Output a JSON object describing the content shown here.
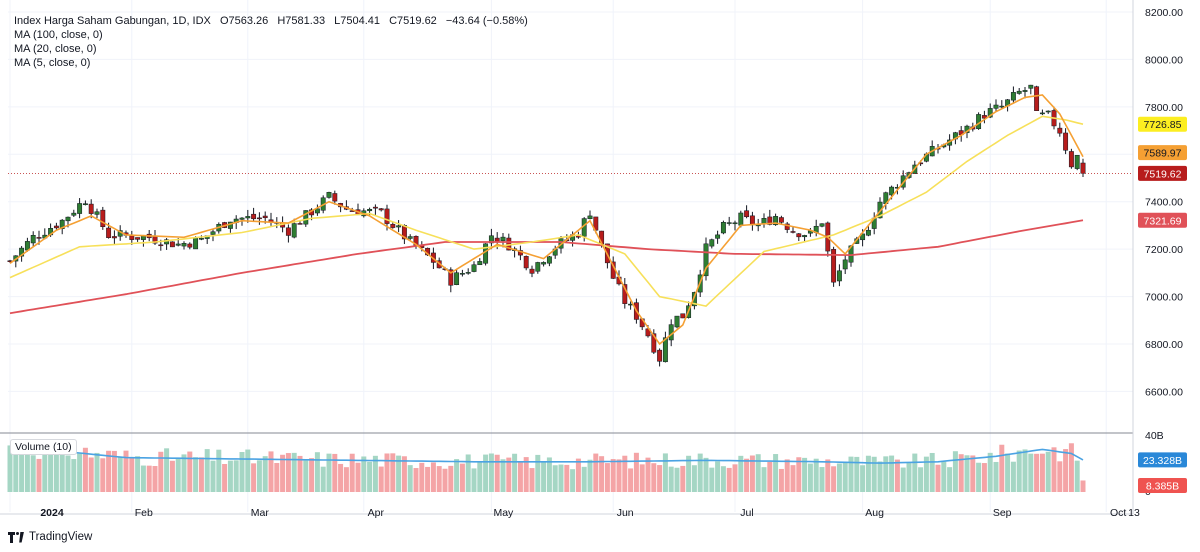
{
  "legend": {
    "symbol": "Index Harga Saham Gabungan, 1D, IDX",
    "open": "O7563.26",
    "high": "H7581.33",
    "low": "L7504.41",
    "close": "C7519.62",
    "change": "−43.64 (−0.58%)",
    "ma100": "MA (100, close, 0)",
    "ma20": "MA (20, close, 0)",
    "ma5": "MA (5, close, 0)"
  },
  "volume_legend": "Volume (10)",
  "footer": {
    "brand": "TradingView"
  },
  "colors": {
    "up": "#26a69a",
    "down": "#ef5350",
    "up_candle": "#2e7d32",
    "down_candle": "#b71c1c",
    "ma100": "#e05158",
    "ma20": "#f7e05a",
    "ma5": "#f5a033",
    "vol_ma": "#4ba3e3",
    "last_price": "#b71c1c"
  },
  "chart_data": {
    "type": "candlestick",
    "title": "Index Harga Saham Gabungan, 1D, IDX",
    "x_labels": [
      "2024",
      "Feb",
      "Mar",
      "Apr",
      "May",
      "Jun",
      "Jul",
      "Aug",
      "Sep",
      "Oct",
      "13"
    ],
    "y_ticks": [
      "8200.00",
      "8000.00",
      "7800.00",
      "7400.00",
      "7200.00",
      "7000.00",
      "6800.00",
      "6600.00"
    ],
    "ylim": [
      6450,
      8200
    ],
    "volume_ticks": [
      "40B",
      "0"
    ],
    "badges": {
      "ma20": "7726.85",
      "ma5": "7589.97",
      "last": "7519.62",
      "ma100": "7321.69",
      "volume_ma": "23.328B",
      "volume": "8.385B"
    },
    "price_path": [
      [
        0,
        7150
      ],
      [
        4,
        7250
      ],
      [
        9,
        7320
      ],
      [
        13,
        7410
      ],
      [
        17,
        7260
      ],
      [
        24,
        7250
      ],
      [
        29,
        7220
      ],
      [
        33,
        7240
      ],
      [
        38,
        7330
      ],
      [
        44,
        7330
      ],
      [
        48,
        7280
      ],
      [
        55,
        7420
      ],
      [
        58,
        7370
      ],
      [
        64,
        7350
      ],
      [
        69,
        7230
      ],
      [
        73,
        7150
      ],
      [
        76,
        7070
      ],
      [
        80,
        7130
      ],
      [
        83,
        7260
      ],
      [
        86,
        7220
      ],
      [
        90,
        7120
      ],
      [
        94,
        7210
      ],
      [
        98,
        7270
      ],
      [
        100,
        7360
      ],
      [
        102,
        7210
      ],
      [
        104,
        7080
      ],
      [
        106,
        6980
      ],
      [
        108,
        6920
      ],
      [
        110,
        6840
      ],
      [
        112,
        6740
      ],
      [
        114,
        6900
      ],
      [
        116,
        6920
      ],
      [
        118,
        7030
      ],
      [
        120,
        7200
      ],
      [
        123,
        7290
      ],
      [
        126,
        7330
      ],
      [
        129,
        7300
      ],
      [
        132,
        7340
      ],
      [
        135,
        7280
      ],
      [
        138,
        7260
      ],
      [
        140,
        7320
      ],
      [
        142,
        7050
      ],
      [
        144,
        7160
      ],
      [
        147,
        7250
      ],
      [
        150,
        7400
      ],
      [
        153,
        7480
      ],
      [
        156,
        7560
      ],
      [
        159,
        7610
      ],
      [
        162,
        7660
      ],
      [
        165,
        7710
      ],
      [
        168,
        7770
      ],
      [
        171,
        7800
      ],
      [
        174,
        7860
      ],
      [
        176,
        7880
      ],
      [
        177,
        7760
      ],
      [
        179,
        7760
      ],
      [
        181,
        7700
      ],
      [
        182,
        7630
      ],
      [
        183,
        7560
      ],
      [
        184,
        7590
      ],
      [
        185,
        7520
      ]
    ],
    "ma100_path": [
      [
        0,
        6930
      ],
      [
        20,
        7010
      ],
      [
        40,
        7100
      ],
      [
        60,
        7180
      ],
      [
        75,
        7230
      ],
      [
        95,
        7230
      ],
      [
        110,
        7200
      ],
      [
        125,
        7180
      ],
      [
        145,
        7175
      ],
      [
        160,
        7210
      ],
      [
        175,
        7280
      ],
      [
        185,
        7321.69
      ]
    ],
    "ma20_path": [
      [
        0,
        7080
      ],
      [
        12,
        7210
      ],
      [
        25,
        7230
      ],
      [
        40,
        7270
      ],
      [
        52,
        7330
      ],
      [
        62,
        7350
      ],
      [
        70,
        7280
      ],
      [
        80,
        7200
      ],
      [
        90,
        7230
      ],
      [
        98,
        7260
      ],
      [
        106,
        7180
      ],
      [
        112,
        7000
      ],
      [
        120,
        6960
      ],
      [
        130,
        7190
      ],
      [
        142,
        7260
      ],
      [
        150,
        7340
      ],
      [
        158,
        7440
      ],
      [
        165,
        7570
      ],
      [
        172,
        7680
      ],
      [
        178,
        7760
      ],
      [
        182,
        7745
      ],
      [
        185,
        7726.85
      ]
    ],
    "ma5_path": [
      [
        0,
        7140
      ],
      [
        8,
        7280
      ],
      [
        14,
        7340
      ],
      [
        20,
        7260
      ],
      [
        30,
        7250
      ],
      [
        40,
        7320
      ],
      [
        48,
        7310
      ],
      [
        55,
        7400
      ],
      [
        62,
        7340
      ],
      [
        70,
        7220
      ],
      [
        76,
        7100
      ],
      [
        84,
        7220
      ],
      [
        92,
        7160
      ],
      [
        100,
        7320
      ],
      [
        104,
        7130
      ],
      [
        108,
        6940
      ],
      [
        112,
        6800
      ],
      [
        116,
        6880
      ],
      [
        120,
        7120
      ],
      [
        126,
        7300
      ],
      [
        132,
        7310
      ],
      [
        138,
        7280
      ],
      [
        141,
        7250
      ],
      [
        144,
        7180
      ],
      [
        148,
        7300
      ],
      [
        152,
        7420
      ],
      [
        158,
        7600
      ],
      [
        164,
        7680
      ],
      [
        170,
        7780
      ],
      [
        175,
        7840
      ],
      [
        178,
        7850
      ],
      [
        181,
        7770
      ],
      [
        183,
        7680
      ],
      [
        185,
        7589.97
      ]
    ],
    "volume_ma_path": [
      [
        0,
        34
      ],
      [
        8,
        30
      ],
      [
        20,
        25
      ],
      [
        40,
        24
      ],
      [
        60,
        23
      ],
      [
        80,
        22
      ],
      [
        100,
        22
      ],
      [
        120,
        23
      ],
      [
        140,
        22
      ],
      [
        150,
        21
      ],
      [
        160,
        22
      ],
      [
        170,
        26
      ],
      [
        178,
        31
      ],
      [
        183,
        28
      ],
      [
        185,
        23.328
      ]
    ],
    "volume_last": 8.385
  }
}
